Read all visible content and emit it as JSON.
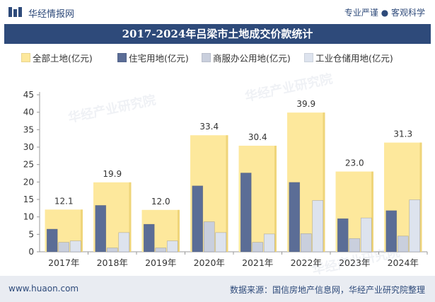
{
  "header": {
    "site_name": "华经情报网",
    "slogan": "专业严谨 ● 客观科学"
  },
  "footer": {
    "url": "www.huaon.com",
    "source": "数据来源：国信房地产信息网，华经产业研究院整理"
  },
  "watermark": {
    "line1": "华经产业研究院",
    "line2": "www.huaon.com"
  },
  "colors": {
    "brand": "#2e4a7a",
    "total": "#fde89c",
    "residential": "#5b6d96",
    "commercial": "#c9cfdd",
    "industrial": "#dde3ee"
  },
  "chart_data": {
    "type": "bar",
    "title": "2017-2024年吕梁市土地成交价款统计",
    "categories": [
      "2017年",
      "2018年",
      "2019年",
      "2020年",
      "2021年",
      "2022年",
      "2023年",
      "2024年"
    ],
    "series": [
      {
        "name": "全部土地(亿元)",
        "values": [
          12.1,
          19.9,
          12.0,
          33.4,
          30.4,
          39.9,
          23.0,
          31.3
        ],
        "labels": [
          "12.1",
          "19.9",
          "12.0",
          "33.4",
          "30.4",
          "39.9",
          "23.0",
          "31.3"
        ]
      },
      {
        "name": "住宅用地(亿元)",
        "values": [
          6.5,
          13.3,
          7.9,
          18.9,
          22.6,
          19.9,
          9.5,
          11.8
        ]
      },
      {
        "name": "商服办公用地(亿元)",
        "values": [
          2.7,
          1.1,
          1.1,
          8.6,
          2.7,
          5.2,
          3.8,
          4.5
        ]
      },
      {
        "name": "工业仓储用地(亿元)",
        "values": [
          3.1,
          5.5,
          3.1,
          5.5,
          5.1,
          14.7,
          9.7,
          14.9
        ]
      }
    ],
    "ylim": [
      0,
      45
    ],
    "yticks": [
      "0",
      "5",
      "10",
      "15",
      "20",
      "25",
      "30",
      "35",
      "40",
      "45"
    ],
    "grid": false,
    "legend": "top"
  }
}
